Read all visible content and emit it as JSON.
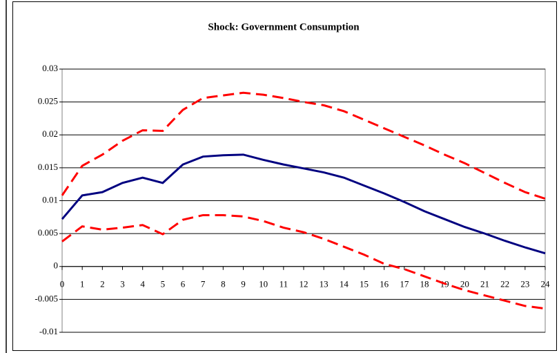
{
  "chart_data": {
    "type": "line",
    "title": "Shock: Government Consumption",
    "x": [
      0,
      1,
      2,
      3,
      4,
      5,
      6,
      7,
      8,
      9,
      10,
      11,
      12,
      13,
      14,
      15,
      16,
      17,
      18,
      19,
      20,
      21,
      22,
      23,
      24
    ],
    "xlim": [
      0,
      24
    ],
    "xticks": [
      0,
      1,
      2,
      3,
      4,
      5,
      6,
      7,
      8,
      9,
      10,
      11,
      12,
      13,
      14,
      15,
      16,
      17,
      18,
      19,
      20,
      21,
      22,
      23,
      24
    ],
    "ylim": [
      -0.01,
      0.03
    ],
    "yticks": [
      0.03,
      0.025,
      0.02,
      0.015,
      0.01,
      0.005,
      0,
      -0.005,
      -0.01
    ],
    "grid": true,
    "series": [
      {
        "color": "#ff0000",
        "dashed": true,
        "values": [
          0.0108,
          0.0153,
          0.017,
          0.0191,
          0.0207,
          0.0206,
          0.0238,
          0.0256,
          0.026,
          0.0264,
          0.0261,
          0.0256,
          0.025,
          0.0245,
          0.0236,
          0.0223,
          0.021,
          0.0197,
          0.0184,
          0.017,
          0.0157,
          0.0142,
          0.0127,
          0.0113,
          0.0103
        ]
      },
      {
        "color": "#000080",
        "dashed": false,
        "values": [
          0.0072,
          0.0108,
          0.0113,
          0.0127,
          0.0135,
          0.0127,
          0.0155,
          0.0167,
          0.0169,
          0.017,
          0.0162,
          0.0155,
          0.0149,
          0.0143,
          0.0135,
          0.0123,
          0.0111,
          0.0098,
          0.0084,
          0.0072,
          0.006,
          0.005,
          0.0039,
          0.0029,
          0.002
        ]
      },
      {
        "color": "#ff0000",
        "dashed": true,
        "values": [
          0.0038,
          0.0061,
          0.0056,
          0.0059,
          0.0063,
          0.0049,
          0.0071,
          0.0078,
          0.0078,
          0.0076,
          0.0069,
          0.0059,
          0.0052,
          0.0042,
          0.003,
          0.0018,
          0.0004,
          -0.0004,
          -0.0015,
          -0.0026,
          -0.0036,
          -0.0044,
          -0.0052,
          -0.006,
          -0.0064
        ]
      }
    ]
  }
}
